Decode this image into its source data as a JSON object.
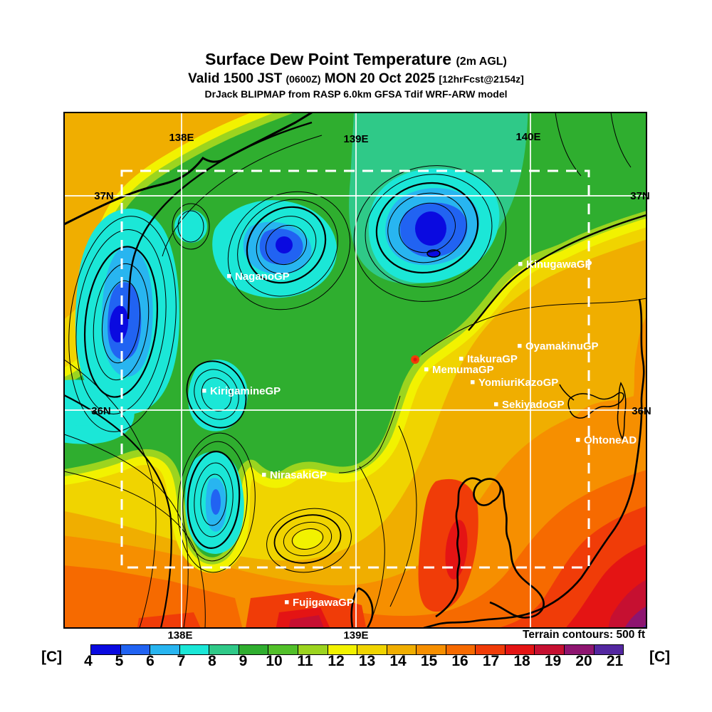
{
  "title": {
    "main": "Surface Dew Point Temperature",
    "agl": "(2m AGL)",
    "valid_a": "Valid 1500 JST",
    "valid_z": "(0600Z)",
    "valid_b": "MON 20 Oct 2025",
    "fcst": "[12hrFcst@2154z]",
    "model": "DrJack BLIPMAP from RASP 6.0km GFSA Tdif WRF-ARW model"
  },
  "map": {
    "lon_top": [
      "138E",
      "139E",
      "140E"
    ],
    "lon_bottom": [
      "138E",
      "139E"
    ],
    "lat_left": [
      "37N",
      "36N"
    ],
    "lat_right": [
      "37N",
      "36N"
    ],
    "terrain_note": "Terrain contours: 500 ft",
    "stations": [
      "NaganoGP",
      "KinugawaGP",
      "OyamakinuGP",
      "ItakuraGP",
      "MemumaGP",
      "YomiuriKazoGP",
      "SekiyadoGP",
      "OhtoneAD",
      "KirigamineGP",
      "NirasakiGP",
      "FujigawaGP"
    ]
  },
  "colorbar": {
    "unit_left": "[C]",
    "unit_right": "[C]",
    "values": [
      4,
      5,
      6,
      7,
      8,
      9,
      10,
      11,
      12,
      13,
      14,
      15,
      16,
      17,
      18,
      19,
      20,
      21
    ],
    "colors": [
      "#0a0ae0",
      "#2163f2",
      "#28b5f0",
      "#1be7d7",
      "#2fc988",
      "#2fae2f",
      "#52c02a",
      "#9cd41f",
      "#f2f200",
      "#f0d400",
      "#f0ae00",
      "#f68f00",
      "#f66a00",
      "#f03c08",
      "#e41414",
      "#c61031",
      "#8e1570",
      "#5327a0"
    ]
  }
}
